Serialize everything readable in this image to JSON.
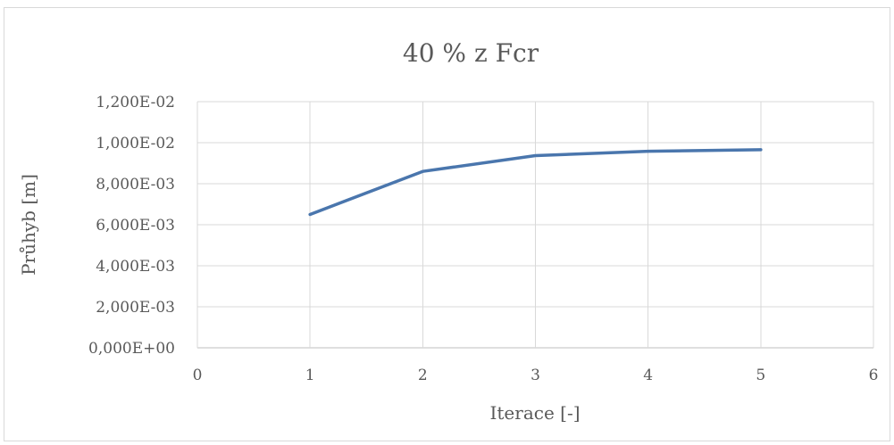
{
  "chart_data": {
    "type": "line",
    "title": "40 % z Fcr",
    "xlabel": "Iterace [-]",
    "ylabel": "Průhyb [m]",
    "xlim": [
      0,
      6
    ],
    "ylim": [
      0,
      0.012
    ],
    "x_ticks": [
      "0",
      "1",
      "2",
      "3",
      "4",
      "5",
      "6"
    ],
    "y_ticks": [
      "0,000E+00",
      "2,000E-03",
      "4,000E-03",
      "6,000E-03",
      "8,000E-03",
      "1,000E-02",
      "1,200E-02"
    ],
    "grid": true,
    "legend": "none",
    "series": [
      {
        "color": "#4a76ad",
        "x": [
          1,
          2,
          3,
          4,
          5
        ],
        "y": [
          0.0065,
          0.0086,
          0.00937,
          0.00958,
          0.00966
        ]
      }
    ]
  }
}
